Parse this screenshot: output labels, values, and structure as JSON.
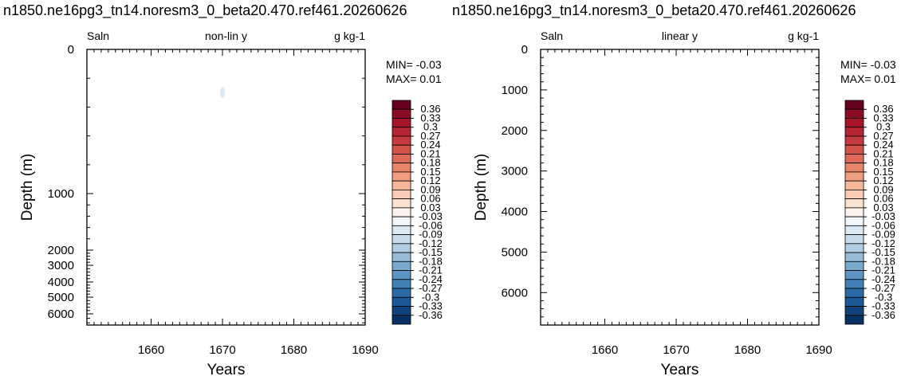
{
  "chart_data": [
    {
      "type": "heatmap",
      "title": "n1850.ne16pg3_tn14.noresm3_0_beta20.470.ref461.20260626",
      "left_label": "Saln",
      "center_label": "non-lin y",
      "right_label": "g kg-1",
      "xlabel": "Years",
      "ylabel": "Depth (m)",
      "xlim": [
        1651,
        1690
      ],
      "x_ticks": [
        1660,
        1670,
        1680,
        1690
      ],
      "ylim": [
        0,
        6500
      ],
      "y_scale": "nonlinear",
      "y_ticks": [
        0,
        1000,
        2000,
        3000,
        4000,
        5000,
        6000
      ],
      "min_text": "MIN= -0.03",
      "max_text": "MAX=  0.01",
      "features": [
        {
          "x": 1670,
          "depth": 300,
          "value": -0.03
        }
      ]
    },
    {
      "type": "heatmap",
      "title": "n1850.ne16pg3_tn14.noresm3_0_beta20.470.ref461.20260626",
      "left_label": "Saln",
      "center_label": "linear y",
      "right_label": "g kg-1",
      "xlabel": "Years",
      "ylabel": "Depth (m)",
      "xlim": [
        1651,
        1690
      ],
      "x_ticks": [
        1660,
        1670,
        1680,
        1690
      ],
      "ylim": [
        0,
        6800
      ],
      "y_scale": "linear",
      "y_ticks": [
        0,
        1000,
        2000,
        3000,
        4000,
        5000,
        6000
      ],
      "min_text": "MIN= -0.03",
      "max_text": "MAX=  0.01",
      "features": []
    }
  ],
  "colorbar": {
    "labels": [
      "0.36",
      "0.33",
      "0.3",
      "0.27",
      "0.24",
      "0.21",
      "0.18",
      "0.15",
      "0.12",
      "0.09",
      "0.06",
      "0.03",
      "-0.03",
      "-0.06",
      "-0.09",
      "-0.12",
      "-0.15",
      "-0.18",
      "-0.21",
      "-0.24",
      "-0.27",
      "-0.3",
      "-0.33",
      "-0.36"
    ],
    "colors": [
      "#67001f",
      "#8a0b24",
      "#a5162b",
      "#b52534",
      "#c53b3f",
      "#d35348",
      "#de6b57",
      "#e7846a",
      "#f19e80",
      "#f7b899",
      "#f9cdb5",
      "#fbe2d1",
      "#fdf3ec",
      "#f0f6fa",
      "#dde9f3",
      "#c9dcec",
      "#b1cde3",
      "#97bbd9",
      "#7aa9ce",
      "#5b94c2",
      "#4280b6",
      "#2c6aa8",
      "#1d5795",
      "#0f417a",
      "#053061"
    ]
  }
}
